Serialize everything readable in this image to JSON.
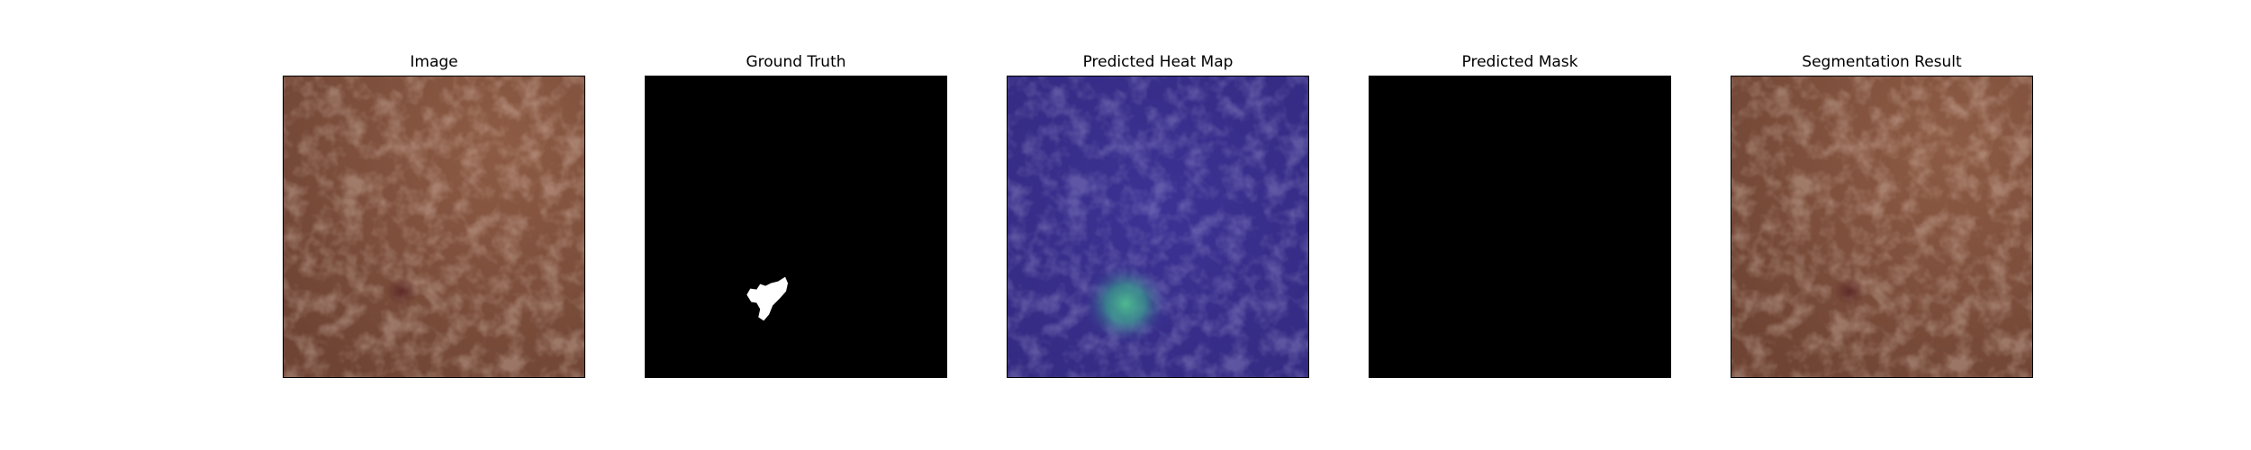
{
  "panels": [
    {
      "title": "Image",
      "content": "leather-texture"
    },
    {
      "title": "Ground Truth",
      "content": "binary-mask"
    },
    {
      "title": "Predicted Heat Map",
      "content": "heatmap-overlay"
    },
    {
      "title": "Predicted Mask",
      "content": "empty-mask"
    },
    {
      "title": "Segmentation Result",
      "content": "leather-texture"
    }
  ],
  "colors": {
    "background": "#ffffff",
    "leather_base": "#7a4c3a",
    "leather_highlight": "#8e5c45",
    "mask_fill": "#000000",
    "mask_region": "#ffffff",
    "heatmap_base": "#3b2f8f",
    "heatmap_hotspot": "#3fae8a"
  }
}
